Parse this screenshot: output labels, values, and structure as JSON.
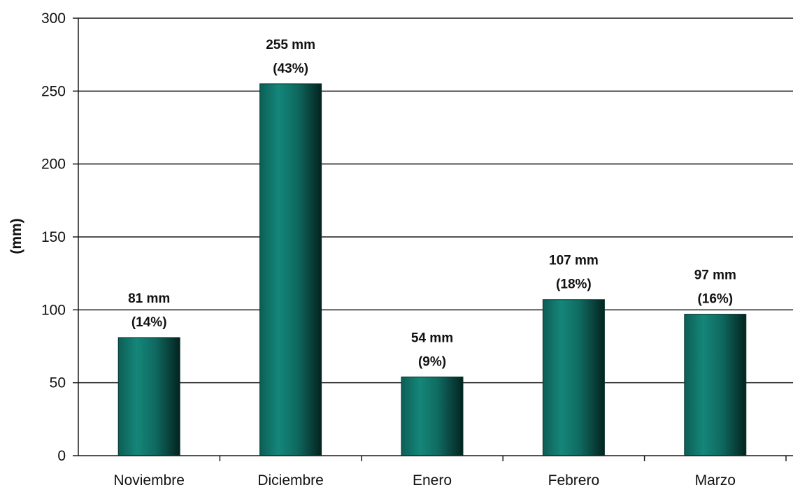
{
  "chart_data": {
    "type": "bar",
    "categories": [
      "Noviembre",
      "Diciembre",
      "Enero",
      "Febrero",
      "Marzo"
    ],
    "values": [
      81,
      255,
      54,
      107,
      97
    ],
    "data_labels": [
      [
        "81 mm",
        "(14%)"
      ],
      [
        "255 mm",
        "(43%)"
      ],
      [
        "54 mm",
        "(9%)"
      ],
      [
        "107 mm",
        "(18%)"
      ],
      [
        "97 mm",
        "(16%)"
      ]
    ],
    "title": "",
    "xlabel": "",
    "ylabel": "(mm)",
    "ylim": [
      0,
      300
    ],
    "yticks": [
      0,
      50,
      100,
      150,
      200,
      250,
      300
    ],
    "grid": true,
    "legend": "none",
    "bar_color": "#0f7a6e",
    "bar_edge_color": "#05322c"
  }
}
